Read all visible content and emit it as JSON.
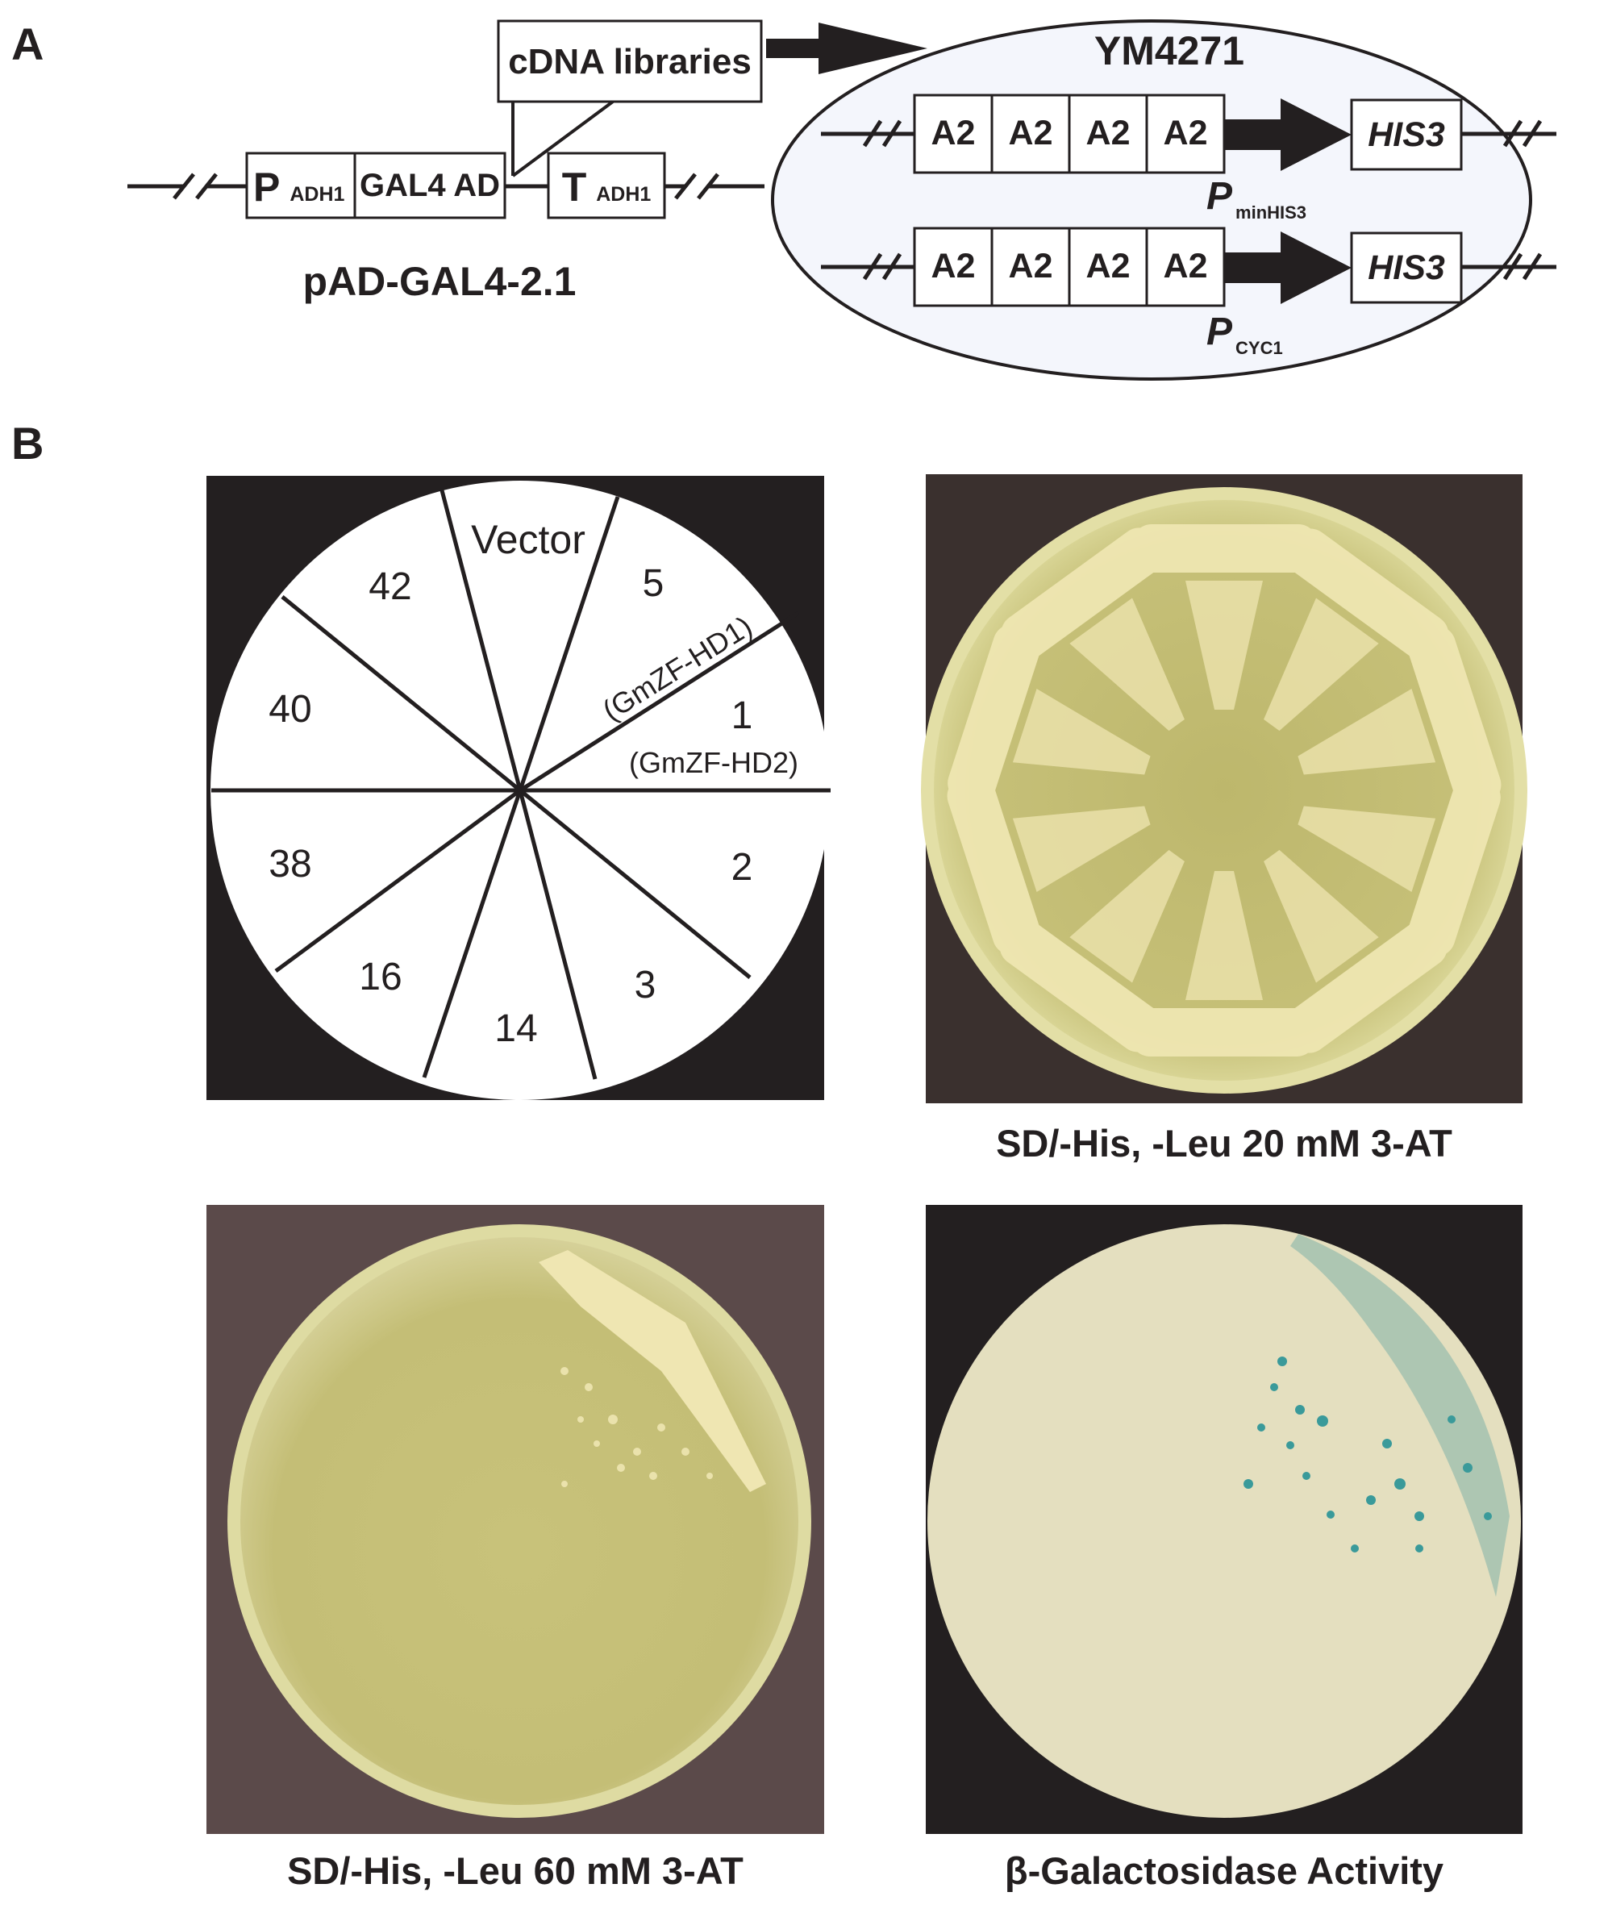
{
  "panel_labels": {
    "a": "A",
    "b": "B"
  },
  "panel_a": {
    "cdna_box": "cDNA libraries",
    "plasmid": {
      "p_main": "P",
      "p_sub": "ADH1",
      "gal4": "GAL4 AD",
      "t_main": "T",
      "t_sub": "ADH1",
      "name": "pAD-GAL4-2.1"
    },
    "yeast": {
      "strain": "YM4271",
      "element": "A2",
      "reporter": "HIS3",
      "promoter1_main": "P",
      "promoter1_sub": "minHIS3",
      "promoter2_main": "P",
      "promoter2_sub": "CYC1"
    }
  },
  "panel_b": {
    "plate_map": {
      "sectors": [
        "Vector",
        "5",
        "(GmZF-HD1)",
        "1",
        "(GmZF-HD2)",
        "2",
        "3",
        "14",
        "16",
        "38",
        "40",
        "42"
      ]
    },
    "captions": {
      "plate_20mm": "SD/-His, -Leu 20 mM 3-AT",
      "plate_60mm": "SD/-His, -Leu 60 mM 3-AT",
      "beta_gal": "β-Galactosidase Activity"
    },
    "colors": {
      "agar": "#c9c57a",
      "colony": "#efe6b2",
      "xgal_paper": "#e4dfbf",
      "blue_colony": "#3a9a9a",
      "dark_bg": "#231f20",
      "brown_bg": "#5b4a4a"
    }
  }
}
